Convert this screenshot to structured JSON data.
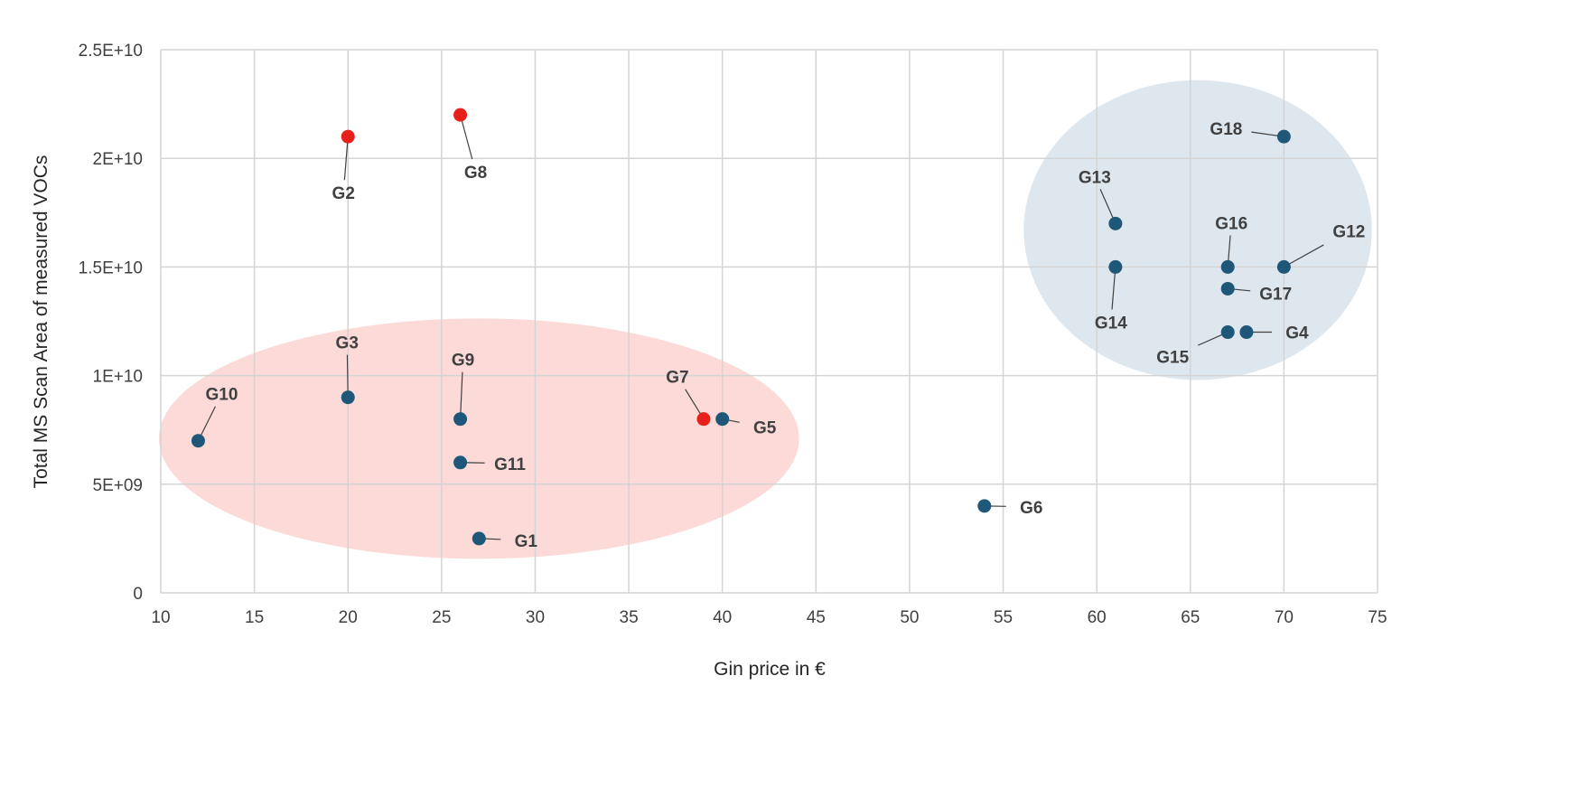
{
  "chart_data": {
    "type": "scatter",
    "title": "",
    "xlabel": "Gin price in €",
    "ylabel": "Total MS Scan Area of measured VOCs",
    "xlim": [
      10,
      75
    ],
    "ylim": [
      0,
      25000000000
    ],
    "grid": true,
    "x_ticks": [
      10,
      15,
      20,
      25,
      30,
      35,
      40,
      45,
      50,
      55,
      60,
      65,
      70,
      75
    ],
    "x_tick_labels": [
      "10",
      "15",
      "20",
      "25",
      "30",
      "35",
      "40",
      "45",
      "50",
      "55",
      "60",
      "65",
      "70",
      "75"
    ],
    "y_ticks": [
      0,
      5000000000,
      10000000000,
      15000000000,
      20000000000,
      25000000000
    ],
    "y_tick_labels": [
      "0",
      "5E+09",
      "1E+10",
      "1.5E+10",
      "2E+10",
      "2.5E+10"
    ],
    "colors": {
      "default": "#1e5778",
      "highlight": "#e8201a",
      "cluster_low": "#fbdad8",
      "cluster_high": "#dfe7ee"
    },
    "points": [
      {
        "label": "G1",
        "x": 27,
        "y": 2500000000,
        "highlight": false
      },
      {
        "label": "G2",
        "x": 20,
        "y": 21000000000,
        "highlight": true
      },
      {
        "label": "G3",
        "x": 20,
        "y": 9000000000,
        "highlight": false
      },
      {
        "label": "G4",
        "x": 68,
        "y": 12000000000,
        "highlight": false
      },
      {
        "label": "G5",
        "x": 40,
        "y": 8000000000,
        "highlight": false
      },
      {
        "label": "G6",
        "x": 54,
        "y": 4000000000,
        "highlight": false
      },
      {
        "label": "G7",
        "x": 39,
        "y": 8000000000,
        "highlight": true
      },
      {
        "label": "G8",
        "x": 26,
        "y": 22000000000,
        "highlight": true
      },
      {
        "label": "G9",
        "x": 26,
        "y": 8000000000,
        "highlight": false
      },
      {
        "label": "G10",
        "x": 12,
        "y": 7000000000,
        "highlight": false
      },
      {
        "label": "G11",
        "x": 26,
        "y": 6000000000,
        "highlight": false
      },
      {
        "label": "G12",
        "x": 70,
        "y": 15000000000,
        "highlight": false
      },
      {
        "label": "G13",
        "x": 61,
        "y": 17000000000,
        "highlight": false
      },
      {
        "label": "G14",
        "x": 61,
        "y": 15000000000,
        "highlight": false
      },
      {
        "label": "G15",
        "x": 67,
        "y": 12000000000,
        "highlight": false
      },
      {
        "label": "G16",
        "x": 67,
        "y": 15000000000,
        "highlight": false
      },
      {
        "label": "G17",
        "x": 67,
        "y": 14000000000,
        "highlight": false
      },
      {
        "label": "G18",
        "x": 70,
        "y": 21000000000,
        "highlight": false
      }
    ],
    "clusters": [
      {
        "name": "low-price-cluster",
        "cx": 27,
        "cy": 7100000000,
        "rx": 17.1,
        "ry": 5530000000,
        "color_key": "cluster_low"
      },
      {
        "name": "high-price-cluster",
        "cx": 65.4,
        "cy": 16700000000,
        "rx": 9.3,
        "ry": 6900000000,
        "color_key": "cluster_high"
      }
    ]
  }
}
